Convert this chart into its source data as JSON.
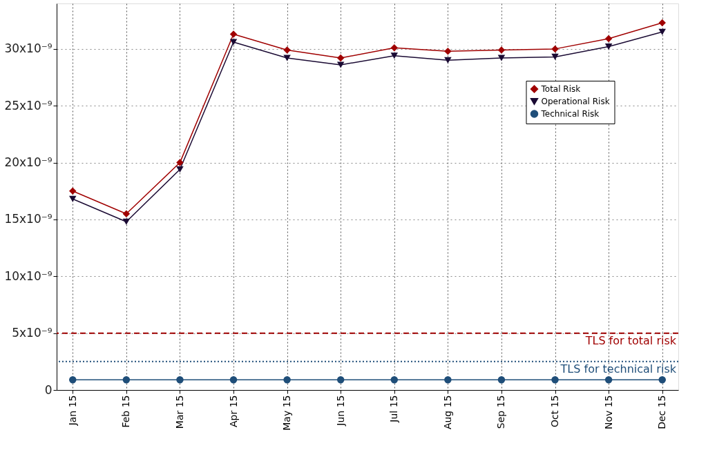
{
  "chart_data": {
    "type": "line",
    "categories": [
      "Jan 15",
      "Feb 15",
      "Mar 15",
      "Apr 15",
      "May 15",
      "Jun 15",
      "Jul 15",
      "Aug 15",
      "Sep 15",
      "Oct 15",
      "Nov 15",
      "Dec 15"
    ],
    "series": [
      {
        "name": "Total Risk",
        "color": "#a00000",
        "marker": "diamond",
        "values": [
          1.75e-08,
          1.55e-08,
          2e-08,
          3.13e-08,
          2.99e-08,
          2.92e-08,
          3.01e-08,
          2.98e-08,
          2.99e-08,
          3e-08,
          3.09e-08,
          3.23e-08
        ]
      },
      {
        "name": "Operational Risk",
        "color": "#1a0a33",
        "marker": "triangle",
        "values": [
          1.68e-08,
          1.48e-08,
          1.94e-08,
          3.06e-08,
          2.92e-08,
          2.86e-08,
          2.94e-08,
          2.9e-08,
          2.92e-08,
          2.93e-08,
          3.02e-08,
          3.15e-08
        ]
      },
      {
        "name": "Technical Risk",
        "color": "#1f4e79",
        "marker": "circle",
        "values": [
          9e-10,
          9e-10,
          9e-10,
          9e-10,
          9e-10,
          9e-10,
          9e-10,
          9e-10,
          9e-10,
          9e-10,
          9e-10,
          9e-10
        ]
      }
    ],
    "ylim": [
      0,
      3.4e-08
    ],
    "yticks": [
      0,
      {
        "value": 5e-09,
        "label": "5x10⁻⁹"
      },
      {
        "value": 1e-08,
        "label": "10x10⁻⁹"
      },
      {
        "value": 1.5e-08,
        "label": "15x10⁻⁹"
      },
      {
        "value": 2e-08,
        "label": "20x10⁻⁹"
      },
      {
        "value": 2.5e-08,
        "label": "25x10⁻⁹"
      },
      {
        "value": 3e-08,
        "label": "30x10⁻⁹"
      }
    ],
    "ref_lines": [
      {
        "axis": "y",
        "value": 5e-09,
        "label": "TLS for total risk",
        "color": "#a00000",
        "line_style": "dashed"
      },
      {
        "axis": "y",
        "value": 2.5e-09,
        "label": "TLS for technical risk",
        "color": "#1f4e79",
        "line_style": "dotted"
      }
    ],
    "grid": true,
    "legend": "top right",
    "line_style": "solid"
  }
}
